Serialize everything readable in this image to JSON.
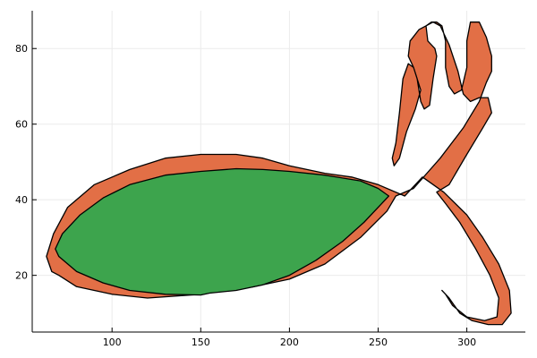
{
  "chart_data": {
    "type": "area",
    "title": "",
    "xlabel": "",
    "ylabel": "",
    "xlim": [
      55,
      333
    ],
    "ylim": [
      5,
      90
    ],
    "grid": true,
    "legend": "none",
    "x_ticks": [
      100,
      150,
      200,
      250,
      300
    ],
    "y_ticks": [
      20,
      40,
      60,
      80
    ],
    "x_tick_labels": [
      "100",
      "150",
      "200",
      "250",
      "300"
    ],
    "y_tick_labels": [
      "20",
      "40",
      "60",
      "80"
    ],
    "colors": {
      "outer_fill": "#e26f46",
      "inner_fill": "#3da44d",
      "outline": "#000000",
      "grid": "#ebebeb"
    },
    "series": [
      {
        "role": "outer-ribbon",
        "fill": "#e26f46",
        "points": [
          [
            70,
            20
          ],
          [
            80,
            17
          ],
          [
            100,
            15
          ],
          [
            120,
            14
          ],
          [
            150,
            15
          ],
          [
            160,
            16
          ],
          [
            180,
            17
          ],
          [
            200,
            19
          ],
          [
            220,
            23
          ],
          [
            240,
            30
          ],
          [
            255,
            37
          ],
          [
            260,
            41
          ],
          [
            270,
            43
          ],
          [
            285,
            51
          ],
          [
            298,
            59
          ],
          [
            307,
            66
          ],
          [
            311,
            71
          ],
          [
            314,
            74
          ],
          [
            314,
            78
          ],
          [
            311,
            83
          ],
          [
            307,
            87
          ],
          [
            302,
            87
          ],
          [
            300,
            82
          ],
          [
            300,
            75
          ],
          [
            297,
            69
          ],
          [
            293,
            68
          ],
          [
            290,
            70
          ],
          [
            288,
            75
          ],
          [
            288,
            82
          ],
          [
            286,
            86
          ],
          [
            283,
            87
          ],
          [
            280,
            87
          ],
          [
            277,
            86
          ],
          [
            278,
            82
          ],
          [
            282,
            80
          ],
          [
            283,
            78
          ],
          [
            281,
            72
          ],
          [
            279,
            65
          ],
          [
            276,
            64
          ],
          [
            274,
            66
          ],
          [
            272,
            72
          ],
          [
            270,
            75
          ],
          [
            267,
            76
          ],
          [
            264,
            72
          ],
          [
            262,
            63
          ],
          [
            260,
            55
          ],
          [
            258,
            51
          ],
          [
            259,
            49
          ],
          [
            262,
            51
          ],
          [
            266,
            58
          ],
          [
            271,
            64
          ],
          [
            274,
            69
          ],
          [
            270,
            75
          ],
          [
            267,
            78
          ],
          [
            268,
            82
          ],
          [
            273,
            85
          ],
          [
            281,
            87
          ],
          [
            285,
            86
          ],
          [
            290,
            81
          ],
          [
            295,
            74
          ],
          [
            298,
            68
          ],
          [
            302,
            66
          ],
          [
            307,
            67
          ],
          [
            312,
            67
          ],
          [
            314,
            63
          ],
          [
            309,
            59
          ],
          [
            300,
            52
          ],
          [
            290,
            44
          ],
          [
            283,
            42
          ],
          [
            288,
            39
          ],
          [
            296,
            34
          ],
          [
            305,
            27
          ],
          [
            313,
            20
          ],
          [
            318,
            14
          ],
          [
            317,
            9
          ],
          [
            310,
            8
          ],
          [
            300,
            9
          ],
          [
            292,
            12
          ],
          [
            288,
            15
          ],
          [
            286,
            16
          ],
          [
            290,
            14
          ],
          [
            296,
            10
          ],
          [
            303,
            8
          ],
          [
            312,
            7
          ],
          [
            320,
            7
          ],
          [
            325,
            10
          ],
          [
            324,
            16
          ],
          [
            318,
            23
          ],
          [
            309,
            30
          ],
          [
            300,
            36
          ],
          [
            287,
            42
          ],
          [
            275,
            46
          ],
          [
            265,
            41
          ],
          [
            250,
            44
          ],
          [
            235,
            46
          ],
          [
            220,
            47
          ],
          [
            200,
            49
          ],
          [
            185,
            51
          ],
          [
            170,
            52
          ],
          [
            150,
            52
          ],
          [
            130,
            51
          ],
          [
            110,
            48
          ],
          [
            90,
            44
          ],
          [
            75,
            38
          ],
          [
            67,
            31
          ],
          [
            63,
            25
          ],
          [
            66,
            21
          ]
        ]
      },
      {
        "role": "inner-body",
        "fill": "#3da44d",
        "points": [
          [
            70,
            25
          ],
          [
            80,
            21
          ],
          [
            95,
            18
          ],
          [
            110,
            16
          ],
          [
            130,
            15
          ],
          [
            150,
            14.8
          ],
          [
            155,
            15.3
          ],
          [
            170,
            16
          ],
          [
            185,
            17.5
          ],
          [
            200,
            20
          ],
          [
            215,
            24
          ],
          [
            230,
            29
          ],
          [
            242,
            34
          ],
          [
            252,
            39
          ],
          [
            256,
            41
          ],
          [
            250,
            43
          ],
          [
            240,
            45
          ],
          [
            220,
            46.5
          ],
          [
            200,
            47.5
          ],
          [
            185,
            48
          ],
          [
            170,
            48.2
          ],
          [
            150,
            47.5
          ],
          [
            130,
            46.5
          ],
          [
            110,
            44
          ],
          [
            95,
            40.5
          ],
          [
            82,
            36
          ],
          [
            72,
            31
          ],
          [
            68,
            27
          ]
        ]
      }
    ]
  }
}
